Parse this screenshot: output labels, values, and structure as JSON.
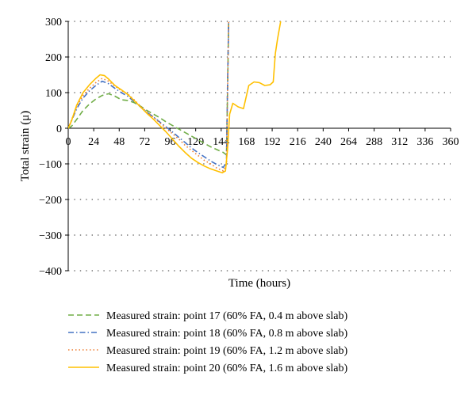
{
  "chart_data": {
    "type": "line",
    "title": "",
    "xlabel": "Time (hours)",
    "ylabel": "Total strain (μ)",
    "xlim": [
      0,
      360
    ],
    "ylim": [
      -400,
      300
    ],
    "xticks": [
      0,
      24,
      48,
      72,
      96,
      120,
      144,
      168,
      192,
      216,
      240,
      264,
      288,
      312,
      336,
      360
    ],
    "yticks": [
      300,
      200,
      100,
      0,
      -100,
      -200,
      -300,
      -400
    ],
    "grid": "horizontal-dotted",
    "legend_position": "bottom",
    "series": [
      {
        "name": "Measured strain: point 17 (60% FA, 0.4 m above slab)",
        "color": "#70ad47",
        "dash": "dashed",
        "x": [
          0,
          3,
          8,
          14,
          20,
          26,
          32,
          38,
          44,
          50,
          56,
          62,
          68,
          74,
          80,
          86,
          92,
          98,
          104,
          110,
          116,
          122,
          128,
          134,
          140,
          146,
          149,
          150,
          151,
          152
        ],
        "y": [
          0,
          5,
          25,
          50,
          68,
          82,
          92,
          97,
          90,
          80,
          78,
          72,
          62,
          50,
          40,
          30,
          18,
          8,
          -2,
          -12,
          -22,
          -32,
          -42,
          -52,
          -60,
          -68,
          -75,
          100,
          300,
          300
        ]
      },
      {
        "name": "Measured strain: point 18 (60% FA, 0.8 m above slab)",
        "color": "#4472c4",
        "dash": "dash-dot",
        "x": [
          0,
          3,
          8,
          14,
          20,
          26,
          32,
          38,
          44,
          50,
          56,
          62,
          68,
          74,
          80,
          86,
          92,
          98,
          104,
          110,
          116,
          122,
          128,
          134,
          140,
          146,
          149,
          150,
          151,
          152
        ],
        "y": [
          0,
          20,
          55,
          85,
          105,
          120,
          132,
          125,
          112,
          100,
          90,
          75,
          60,
          45,
          32,
          18,
          4,
          -10,
          -25,
          -40,
          -55,
          -68,
          -80,
          -92,
          -102,
          -110,
          -95,
          120,
          300,
          300
        ]
      },
      {
        "name": "Measured strain: point 19 (60% FA, 1.2 m above slab)",
        "color": "#ed7d31",
        "dash": "dotted",
        "x": [
          0,
          3,
          8,
          14,
          20,
          26,
          32,
          38,
          44,
          50,
          56,
          62,
          68,
          74,
          80,
          86,
          92,
          98,
          104,
          110,
          116,
          122,
          128,
          134,
          140,
          146,
          149,
          150,
          151,
          152
        ],
        "y": [
          0,
          22,
          60,
          92,
          112,
          128,
          140,
          132,
          118,
          106,
          96,
          80,
          62,
          46,
          32,
          16,
          0,
          -15,
          -30,
          -48,
          -62,
          -76,
          -90,
          -100,
          -112,
          -120,
          -100,
          100,
          300,
          300
        ]
      },
      {
        "name": "Measured strain: point 20 (60% FA, 1.6 m above slab)",
        "color": "#ffc000",
        "dash": "solid",
        "x": [
          0,
          3,
          8,
          14,
          20,
          26,
          30,
          34,
          38,
          44,
          50,
          56,
          62,
          68,
          74,
          80,
          86,
          92,
          98,
          104,
          110,
          116,
          122,
          128,
          134,
          140,
          145,
          148,
          150,
          152,
          155,
          160,
          165,
          170,
          175,
          180,
          185,
          190,
          193,
          195,
          197,
          200
        ],
        "y": [
          0,
          20,
          65,
          100,
          122,
          140,
          150,
          148,
          138,
          120,
          108,
          95,
          78,
          60,
          42,
          26,
          8,
          -10,
          -30,
          -50,
          -68,
          -84,
          -96,
          -106,
          -114,
          -120,
          -125,
          -120,
          -60,
          40,
          70,
          60,
          55,
          120,
          130,
          128,
          120,
          122,
          130,
          210,
          250,
          300
        ]
      }
    ]
  }
}
